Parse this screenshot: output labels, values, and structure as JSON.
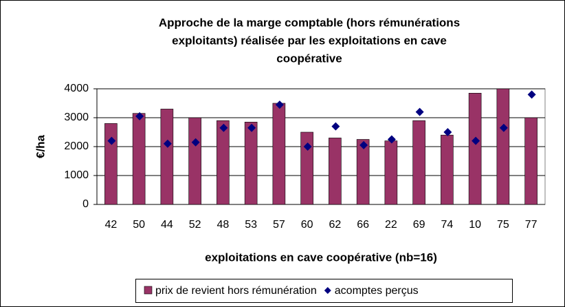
{
  "chart_data": {
    "type": "bar",
    "title": [
      "Approche de la marge comptable (hors rémunérations",
      "exploitants) réalisée par les exploitations en cave",
      "coopérative"
    ],
    "x_label": "exploitations en cave coopérative (nb=16)",
    "y_label": "€/ha",
    "categories": [
      "42",
      "50",
      "44",
      "52",
      "48",
      "53",
      "57",
      "60",
      "62",
      "66",
      "22",
      "69",
      "74",
      "10",
      "75",
      "77"
    ],
    "series": [
      {
        "name": "prix de revient hors rémunération",
        "type": "bar",
        "color": "#993366",
        "values": [
          2800,
          3150,
          3300,
          3000,
          2900,
          2850,
          3500,
          2500,
          2300,
          2250,
          2200,
          2900,
          2400,
          3850,
          4000,
          3000
        ]
      },
      {
        "name": "acomptes perçus",
        "type": "scatter",
        "color": "#000080",
        "values": [
          2200,
          3050,
          2100,
          2150,
          2650,
          2650,
          3450,
          2000,
          2700,
          2050,
          2250,
          3200,
          2500,
          2200,
          2650,
          3800
        ]
      }
    ],
    "ylim": [
      0,
      4000
    ],
    "yticks": [
      0,
      1000,
      2000,
      3000,
      4000
    ],
    "grid": true,
    "legend": "bottom"
  }
}
